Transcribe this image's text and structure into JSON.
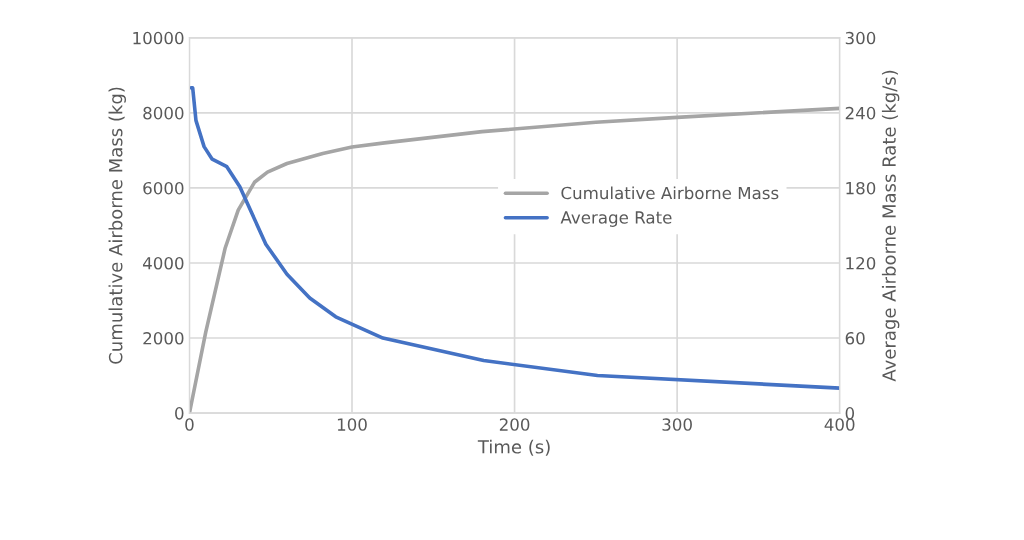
{
  "chart_data": {
    "type": "line",
    "xlabel": "Time (s)",
    "ylabel": "Cumulative Airborne Mass (kg)",
    "y2label": "Average Airborne Mass Rate (kg/s)",
    "xlim": [
      0,
      400
    ],
    "xticks": [
      0,
      100,
      200,
      300,
      400
    ],
    "ylim": [
      0,
      10000
    ],
    "yticks": [
      0,
      2000,
      4000,
      6000,
      8000,
      10000
    ],
    "y2lim": [
      0,
      300
    ],
    "y2ticks": [
      0,
      60,
      120,
      180,
      240,
      300
    ],
    "grid": true,
    "legend": "center right",
    "marker": "none",
    "line_style": "solid",
    "series": [
      {
        "name": "Cumulative Airborne Mass",
        "color": "#a5a5a5",
        "x": [
          0,
          10,
          22,
          30,
          40,
          48,
          60,
          82,
          100,
          120,
          180,
          250,
          300,
          400
        ],
        "values": [
          0,
          2150,
          4400,
          5410,
          6150,
          6420,
          6650,
          6920,
          7090,
          7200,
          7500,
          7750,
          7880,
          8120
        ]
      },
      {
        "name": "Average Rate",
        "color": "#4472c4",
        "axis": "y2",
        "x": [
          1,
          2,
          4,
          9,
          14,
          23,
          31,
          47,
          60,
          74,
          90,
          119,
          181,
          251,
          400
        ],
        "values": [
          260,
          260,
          234,
          213,
          203,
          197,
          181,
          135,
          111,
          92,
          77,
          60,
          42,
          30,
          20
        ]
      }
    ]
  }
}
